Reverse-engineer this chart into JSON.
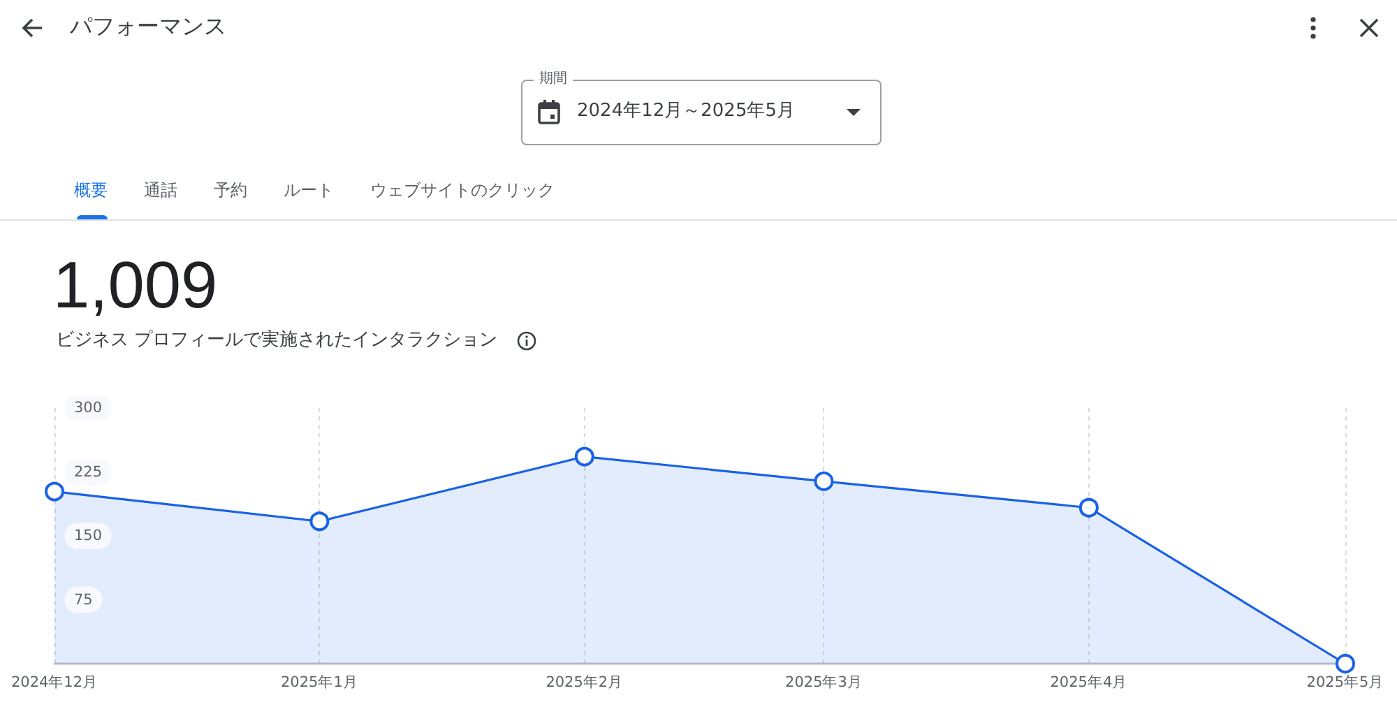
{
  "chart_data": {
    "type": "area",
    "title": "パフォーマンス",
    "annotations": [
      "期間",
      "2024年12月～2025年5月",
      "概要",
      "通話",
      "予約",
      "ルート",
      "ウェブサイトのクリック",
      "1,009",
      "ビジネス プロフィールで実施されたインタラクション"
    ],
    "x": [
      "2024-12",
      "2025-01",
      "2025-02",
      "2025-03",
      "2025-04",
      "2025-05"
    ],
    "values": [
      202,
      167,
      243,
      214,
      183,
      0
    ],
    "color": "#1a62e6",
    "xlim": [
      "2024-12",
      "2025-05"
    ],
    "xticks": [
      {
        "value": "2024-12",
        "label": "2024年12月"
      },
      {
        "value": "2025-01",
        "label": "2025年1月"
      },
      {
        "value": "2025-02",
        "label": "2025年2月"
      },
      {
        "value": "2025-03",
        "label": "2025年3月"
      },
      {
        "value": "2025-04",
        "label": "2025年4月"
      },
      {
        "value": "2025-05",
        "label": "2025年5月"
      }
    ],
    "ylim": [
      0,
      300
    ],
    "yticks": [
      75,
      150,
      225,
      300
    ],
    "grid": "x",
    "marker": "circle",
    "line_style": "solid"
  }
}
